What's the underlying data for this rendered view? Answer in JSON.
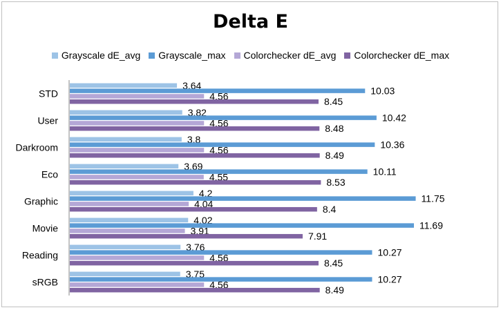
{
  "chart_data": {
    "type": "bar",
    "orientation": "horizontal",
    "title": "Delta E",
    "categories": [
      "STD",
      "User",
      "Darkroom",
      "Eco",
      "Graphic",
      "Movie",
      "Reading",
      "sRGB"
    ],
    "series": [
      {
        "name": "Grayscale dE_avg",
        "color": "#9dc3e6",
        "values": [
          3.64,
          3.82,
          3.8,
          3.69,
          4.2,
          4.02,
          3.76,
          3.75
        ]
      },
      {
        "name": "Grayscale_max",
        "color": "#5b9bd5",
        "values": [
          10.03,
          10.42,
          10.36,
          10.11,
          11.75,
          11.69,
          10.27,
          10.27
        ]
      },
      {
        "name": "Colorchecker dE_avg",
        "color": "#b4a7d6",
        "values": [
          4.56,
          4.56,
          4.56,
          4.55,
          4.04,
          3.91,
          4.56,
          4.56
        ]
      },
      {
        "name": "Colorchecker dE_max",
        "color": "#8064a2",
        "values": [
          8.45,
          8.48,
          8.49,
          8.53,
          8.4,
          7.91,
          8.45,
          8.49
        ]
      }
    ],
    "xlim": [
      0,
      12
    ],
    "legend_position": "top",
    "grid": false
  }
}
